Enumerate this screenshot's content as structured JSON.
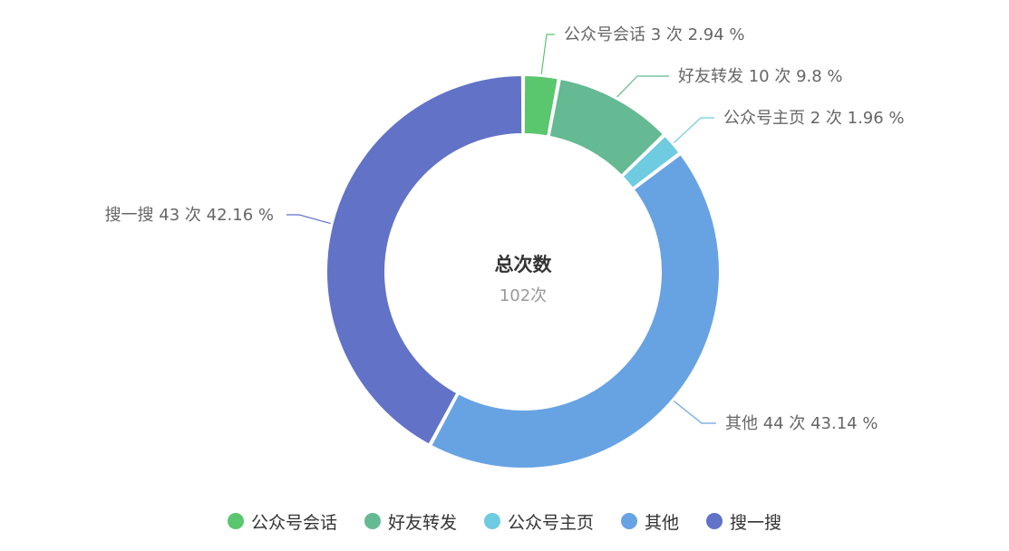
{
  "chart_data": {
    "type": "pie",
    "variant": "donut",
    "center": {
      "title": "总次数",
      "subtitle": "102次"
    },
    "total": 102,
    "unit": "次",
    "slices": [
      {
        "name": "公众号会话",
        "value": 3,
        "percent": 2.94,
        "color": "#5ac66d",
        "label_text": "公众号会话 3 次 2.94 %"
      },
      {
        "name": "好友转发",
        "value": 10,
        "percent": 9.8,
        "color": "#65b993",
        "label_text": "好友转发 10 次 9.8 %"
      },
      {
        "name": "公众号主页",
        "value": 2,
        "percent": 1.96,
        "color": "#6ecbe0",
        "label_text": "公众号主页 2 次 1.96 %"
      },
      {
        "name": "其他",
        "value": 44,
        "percent": 43.14,
        "color": "#67a3e3",
        "label_text": "其他 44 次 43.14 %"
      },
      {
        "name": "搜一搜",
        "value": 43,
        "percent": 42.16,
        "color": "#6272c7",
        "label_text": "搜一搜 43 次 42.16 %"
      }
    ],
    "legend_position": "bottom"
  },
  "legend": {
    "items": [
      {
        "label": "公众号会话",
        "color": "#5ac66d"
      },
      {
        "label": "好友转发",
        "color": "#65b993"
      },
      {
        "label": "公众号主页",
        "color": "#6ecbe0"
      },
      {
        "label": "其他",
        "color": "#67a3e3"
      },
      {
        "label": "搜一搜",
        "color": "#6272c7"
      }
    ]
  }
}
